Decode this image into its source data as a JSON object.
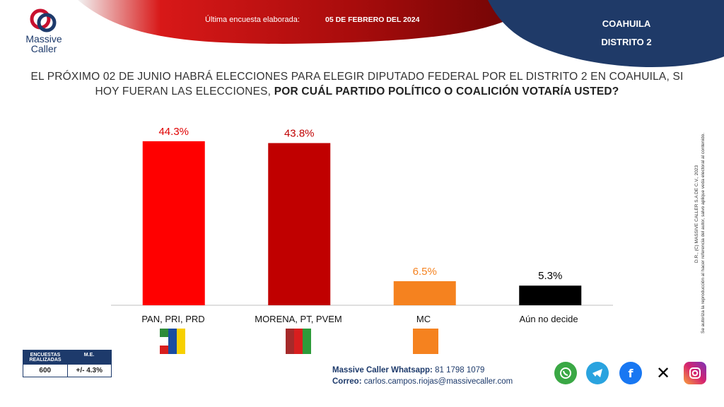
{
  "header": {
    "survey_label": "Última encuesta elaborada:",
    "survey_date": "05 DE FEBRERO DEL 2024",
    "state": "COAHUILA",
    "district": "DISTRITO 2",
    "logo_line1": "Massive",
    "logo_line2": "Caller"
  },
  "question": {
    "normal": "EL PRÓXIMO 02 DE JUNIO HABRÁ ELECCIONES PARA ELEGIR DIPUTADO FEDERAL POR EL DISTRITO 2 EN COAHUILA, SI HOY FUERAN LAS ELECCIONES,",
    "bold": "POR CUÁL PARTIDO POLÍTICO O COALICIÓN  VOTARÍA USTED?"
  },
  "chart_data": {
    "type": "bar",
    "categories": [
      "PAN, PRI, PRD",
      "MORENA, PT, PVEM",
      "MC",
      "Aún no decide"
    ],
    "values": [
      44.3,
      43.8,
      6.5,
      5.3
    ],
    "value_labels": [
      "44.3%",
      "43.8%",
      "6.5%",
      "5.3%"
    ],
    "colors": [
      "#ff0000",
      "#c00000",
      "#f5821f",
      "#000000"
    ],
    "label_colors": [
      "#e00000",
      "#c00000",
      "#f5821f",
      "#000000"
    ],
    "ylim": [
      0,
      50
    ],
    "grid": false
  },
  "stats": {
    "col1_header": "ENCUESTAS REALIZADAS",
    "col2_header": "M.E.",
    "col1_value": "600",
    "col2_value": "+/- 4.3%"
  },
  "contact": {
    "whatsapp_label": "Massive Caller Whatsapp:",
    "whatsapp_value": "81 1798 1079",
    "email_label": "Correo:",
    "email_value": "carlos.campos.riojas@massivecaller.com"
  },
  "side_note": {
    "line1": "D.R., (C) MASSIVE CALLER S.A DE C.V., 2023",
    "line2": "Se autoriza la reproducción al hacer referencia del autor, salvo aplique veda electoral al contenido."
  },
  "social": [
    {
      "icon": "whatsapp-icon",
      "color": "#3aa845"
    },
    {
      "icon": "telegram-icon",
      "color": "#2aa3df"
    },
    {
      "icon": "facebook-icon",
      "color": "#1877f2"
    },
    {
      "icon": "x-icon",
      "color": "#000000"
    },
    {
      "icon": "instagram-icon",
      "color": "#d6246e"
    }
  ]
}
